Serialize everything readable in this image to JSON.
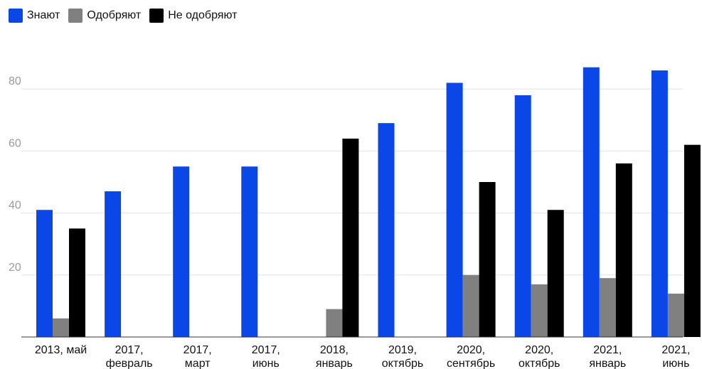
{
  "chart_data": {
    "type": "bar",
    "title": "",
    "xlabel": "",
    "ylabel": "",
    "ylim": [
      0,
      100
    ],
    "yticks": [
      20,
      40,
      60,
      80
    ],
    "grid": true,
    "legend_position": "top-left",
    "categories": [
      [
        "2013, май"
      ],
      [
        "2017,",
        "февраль"
      ],
      [
        "2017,",
        "март"
      ],
      [
        "2017,",
        "июнь"
      ],
      [
        "2018,",
        "январь"
      ],
      [
        "2019,",
        "октябрь"
      ],
      [
        "2020,",
        "сентябрь"
      ],
      [
        "2020,",
        "октябрь"
      ],
      [
        "2021,",
        "январь"
      ],
      [
        "2021,",
        "июнь"
      ]
    ],
    "series": [
      {
        "name": "Знают",
        "color": "#0a47e6",
        "values": [
          41,
          47,
          55,
          55,
          null,
          69,
          82,
          78,
          87,
          86
        ]
      },
      {
        "name": "Одобряют",
        "color": "#808080",
        "values": [
          6,
          null,
          null,
          null,
          9,
          null,
          20,
          17,
          19,
          14
        ]
      },
      {
        "name": "Не одобряют",
        "color": "#000000",
        "values": [
          35,
          null,
          null,
          null,
          64,
          null,
          50,
          41,
          56,
          62
        ]
      }
    ]
  }
}
